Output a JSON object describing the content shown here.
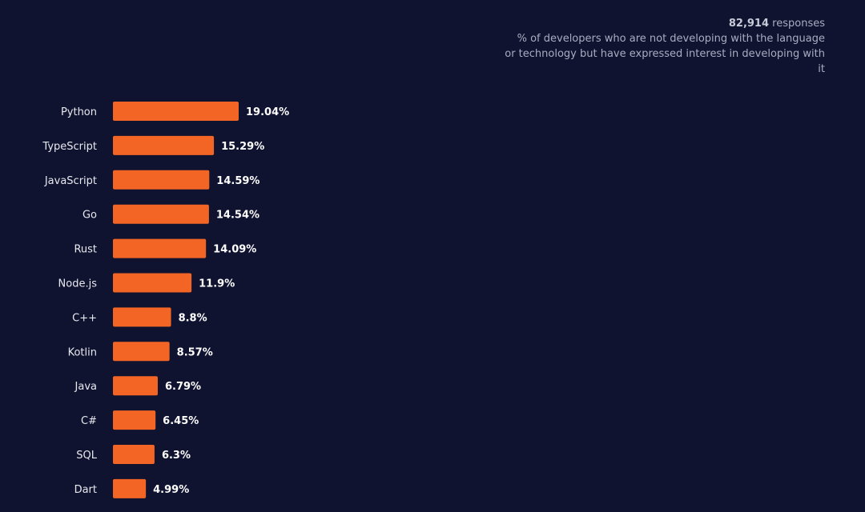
{
  "info": {
    "responses_count": "82,914",
    "responses_word": "responses",
    "description": "% of developers who are not developing with the language or technology but have expressed interest in developing with it"
  },
  "colors": {
    "background": "#0f1330",
    "bar": "#f26524",
    "value_text": "#ffffff",
    "category_text": "#e8e9ef"
  },
  "chart_data": {
    "type": "bar",
    "orientation": "horizontal",
    "categories": [
      "Python",
      "TypeScript",
      "JavaScript",
      "Go",
      "Rust",
      "Node.js",
      "C++",
      "Kotlin",
      "Java",
      "C#",
      "SQL",
      "Dart"
    ],
    "values": [
      19.04,
      15.29,
      14.59,
      14.54,
      14.09,
      11.9,
      8.8,
      8.57,
      6.79,
      6.45,
      6.3,
      4.99
    ],
    "value_labels": [
      "19.04%",
      "15.29%",
      "14.59%",
      "14.54%",
      "14.09%",
      "11.9%",
      "8.8%",
      "8.57%",
      "6.79%",
      "6.45%",
      "6.3%",
      "4.99%"
    ],
    "grid": false,
    "legend": "none"
  }
}
